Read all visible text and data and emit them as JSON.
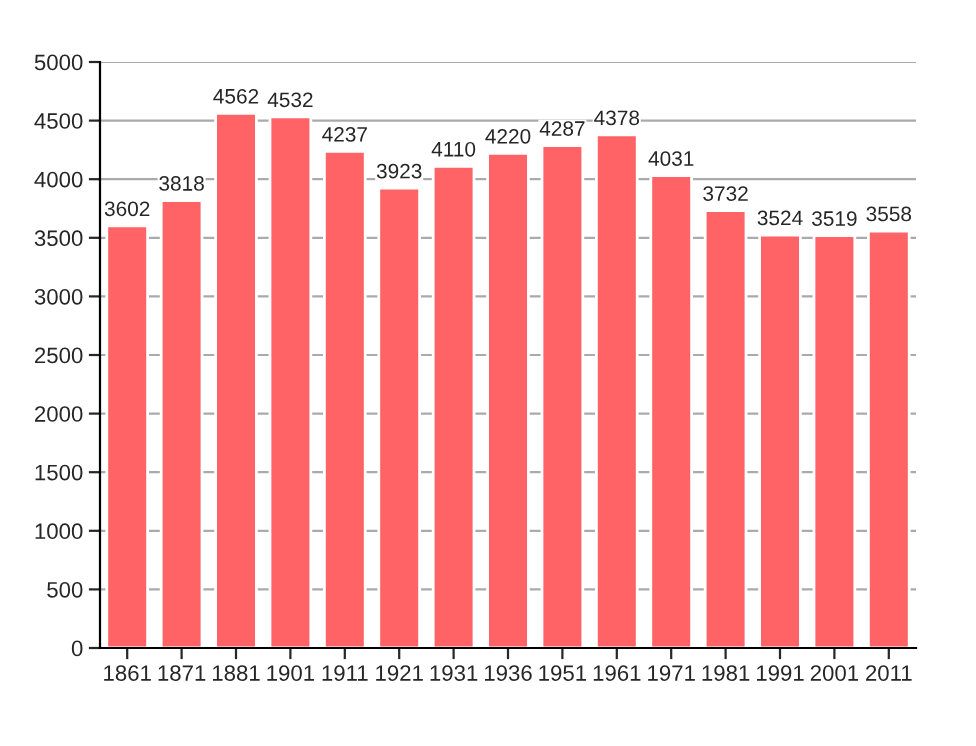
{
  "chart_data": {
    "type": "bar",
    "categories": [
      "1861",
      "1871",
      "1881",
      "1901",
      "1911",
      "1921",
      "1931",
      "1936",
      "1951",
      "1961",
      "1971",
      "1981",
      "1991",
      "2001",
      "2011"
    ],
    "values": [
      3602,
      3818,
      4562,
      4532,
      4237,
      3923,
      4110,
      4220,
      4287,
      4378,
      4031,
      3732,
      3524,
      3519,
      3558
    ],
    "color": "#ff6366",
    "ylim": [
      0,
      5000
    ],
    "yticks": [
      0,
      500,
      1000,
      1500,
      2000,
      2500,
      3000,
      3500,
      4000,
      4500,
      5000
    ],
    "grid": "y",
    "data_labels": true
  }
}
